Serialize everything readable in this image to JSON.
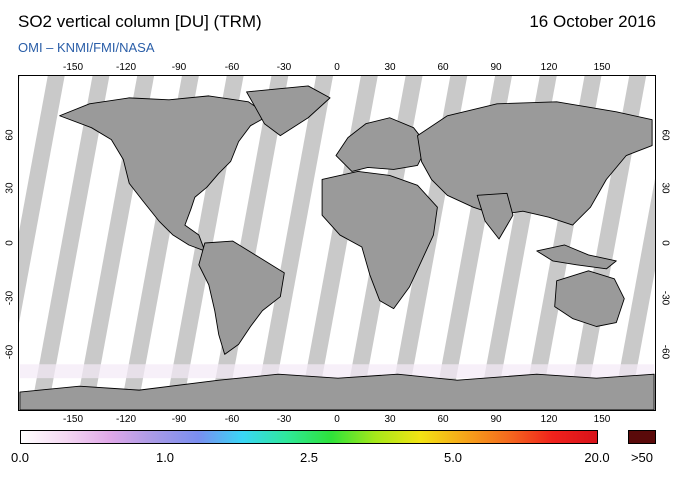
{
  "header": {
    "title": "SO2 vertical column [DU] (TRM)",
    "date": "16 October 2016",
    "credit": "OMI  –  KNMI/FMI/NASA"
  },
  "map": {
    "projection": "equirectangular",
    "colors": {
      "ocean_nodata": "#c9c9c9",
      "swath": "#ffffff",
      "land_nodata": "#9a9a9a",
      "coastline": "#000000"
    },
    "lon_ticks": [
      "-150",
      "-120",
      "-90",
      "-60",
      "-30",
      "0",
      "30",
      "60",
      "90",
      "120",
      "150"
    ],
    "lat_ticks": [
      "60",
      "30",
      "0",
      "-30",
      "-60"
    ]
  },
  "legend": {
    "labels": [
      "0.0",
      "1.0",
      "2.5",
      "5.0",
      "20.0",
      ">50"
    ],
    "gradient_colors": [
      "#ffffff",
      "#f4d8f2",
      "#e0a8e8",
      "#a89ae6",
      "#7a8ef0",
      "#3ad6f6",
      "#2fe89a",
      "#2ee23a",
      "#a6e81a",
      "#f2e414",
      "#f6a61a",
      "#f46a1e",
      "#f0221c",
      "#d8121a"
    ],
    "overflow_color": "#5a0a0a"
  }
}
